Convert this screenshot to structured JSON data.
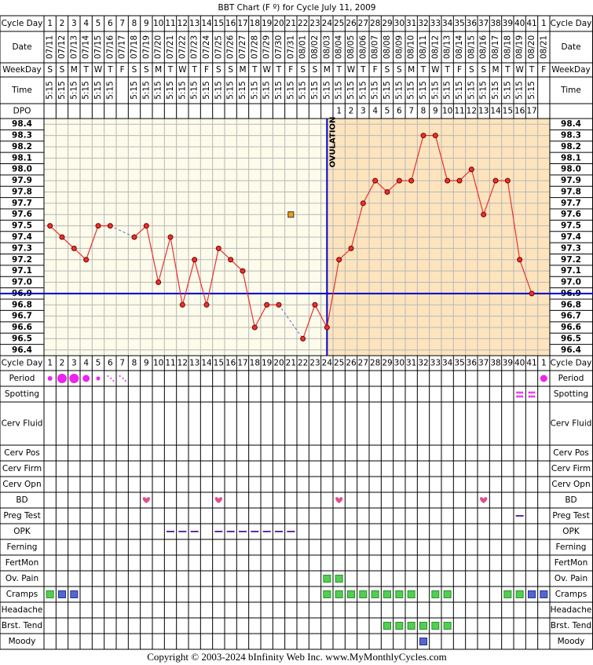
{
  "chart_data": {
    "type": "line",
    "title": "BBT Chart (F º) for Cycle July 11, 2009",
    "header_labels": {
      "cycle_day": "Cycle Day",
      "date": "Date",
      "weekday": "WeekDay",
      "time": "Time",
      "dpo": "DPO"
    },
    "categories": [
      1,
      2,
      3,
      4,
      5,
      6,
      7,
      8,
      9,
      10,
      11,
      12,
      13,
      14,
      15,
      16,
      17,
      18,
      19,
      20,
      21,
      22,
      23,
      24,
      25,
      26,
      27,
      28,
      29,
      30,
      31,
      32,
      33,
      34,
      35,
      36,
      37,
      38,
      39,
      40,
      41,
      1
    ],
    "dates": [
      "07/11",
      "07/12",
      "07/13",
      "07/14",
      "07/15",
      "07/16",
      "07/17",
      "07/18",
      "07/19",
      "07/20",
      "07/21",
      "07/22",
      "07/23",
      "07/24",
      "07/25",
      "07/26",
      "07/27",
      "07/28",
      "07/29",
      "07/30",
      "07/31",
      "08/01",
      "08/02",
      "08/03",
      "08/04",
      "08/05",
      "08/06",
      "08/07",
      "08/08",
      "08/09",
      "08/10",
      "08/11",
      "08/12",
      "08/13",
      "08/14",
      "08/15",
      "08/16",
      "08/17",
      "08/18",
      "08/19",
      "08/20",
      "08/21"
    ],
    "weekdays": [
      "S",
      "S",
      "M",
      "T",
      "W",
      "T",
      "F",
      "S",
      "S",
      "M",
      "T",
      "W",
      "T",
      "F",
      "S",
      "S",
      "M",
      "T",
      "W",
      "T",
      "F",
      "S",
      "S",
      "M",
      "T",
      "W",
      "T",
      "F",
      "S",
      "S",
      "M",
      "T",
      "W",
      "T",
      "F",
      "S",
      "S",
      "M",
      "T",
      "W",
      "T",
      "F"
    ],
    "times": [
      "5:15",
      "5:15",
      "5:15",
      "5:15",
      "5:15",
      "5:15",
      null,
      "5:15",
      "5:15",
      "5:15",
      "5:15",
      "5:15",
      "5:15",
      "5:15",
      "5:15",
      "5:15",
      "5:15",
      "5:15",
      "5:15",
      "5:15",
      "5:15",
      "5:15",
      "5:15",
      "5:15",
      "5:15",
      "5:15",
      "5:15",
      "5:15",
      "5:15",
      "5:15",
      "5:15",
      "5:15",
      "5:15",
      "5:15",
      "5:15",
      "5:15",
      "5:15",
      "5:15",
      "5:15",
      "5:15",
      "5:15",
      null
    ],
    "dpo": [
      null,
      null,
      null,
      null,
      null,
      null,
      null,
      null,
      null,
      null,
      null,
      null,
      null,
      null,
      null,
      null,
      null,
      null,
      null,
      null,
      null,
      null,
      null,
      null,
      1,
      2,
      3,
      4,
      5,
      6,
      7,
      8,
      9,
      10,
      11,
      12,
      13,
      14,
      15,
      16,
      17,
      null
    ],
    "series": [
      {
        "color": "#e8322f",
        "values": [
          97.5,
          97.4,
          97.3,
          97.2,
          97.5,
          97.5,
          null,
          97.4,
          97.5,
          97.0,
          97.4,
          96.8,
          97.2,
          96.8,
          97.3,
          97.2,
          97.1,
          96.6,
          96.8,
          96.8,
          null,
          96.5,
          96.8,
          96.6,
          97.2,
          97.3,
          97.7,
          97.9,
          97.8,
          97.9,
          97.9,
          98.3,
          98.3,
          97.9,
          97.9,
          98.0,
          97.6,
          97.9,
          97.9,
          97.2,
          96.9,
          null
        ]
      }
    ],
    "excluded_values": [
      null,
      null,
      null,
      null,
      null,
      null,
      null,
      null,
      null,
      null,
      null,
      null,
      null,
      null,
      null,
      null,
      null,
      null,
      null,
      null,
      97.6,
      null,
      null,
      null,
      null,
      null,
      null,
      null,
      null,
      null,
      null,
      null,
      null,
      null,
      null,
      null,
      null,
      null,
      null,
      null,
      null,
      null
    ],
    "coverline": 96.9,
    "ovulation_day": 24,
    "ovulation_label": "OVULATION",
    "ylim": [
      96.35,
      98.45
    ],
    "yticks": [
      98.4,
      98.3,
      98.2,
      98.1,
      {
        "value": 98,
        "label": "98.0"
      },
      97.9,
      97.8,
      97.7,
      97.6,
      97.5,
      97.4,
      97.3,
      97.2,
      97.1,
      {
        "value": 97,
        "label": "97.0"
      },
      96.9,
      96.8,
      96.7,
      96.6,
      96.5,
      96.4
    ],
    "grid": true
  },
  "observation_rows": [
    "Period",
    "Spotting",
    "Cerv Fluid",
    "Cerv Pos",
    "Cerv Firm",
    "Cerv Opn",
    "BD",
    "Preg Test",
    "OPK",
    "Ferning",
    "FertMon",
    "Ov. Pain",
    "Cramps",
    "Headache",
    "Brst. Tend",
    "Moody"
  ],
  "footer": "Copyright © 2003-2024 bInfinity Web Inc.     www.MyMonthlyCycles.com"
}
